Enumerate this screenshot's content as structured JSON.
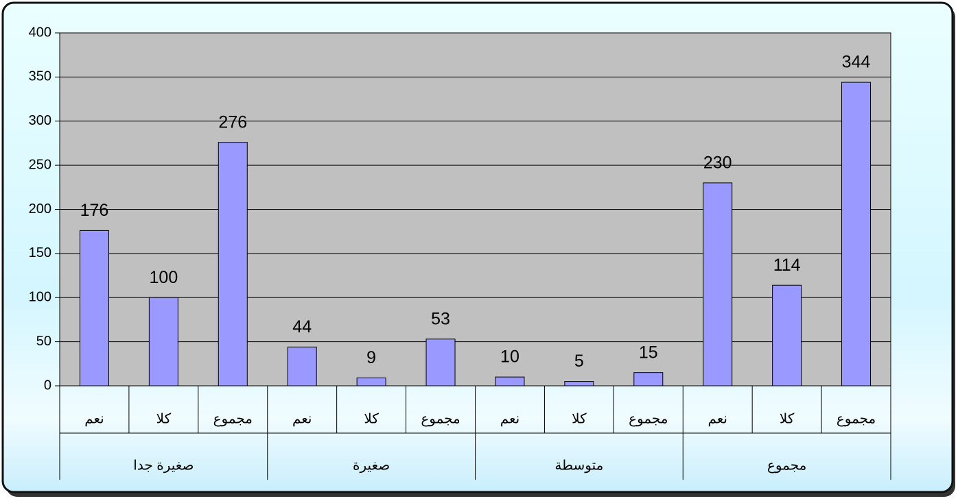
{
  "chart_data": {
    "type": "bar",
    "categories": [
      "نعم",
      "كلا",
      "مجموع",
      "نعم",
      "كلا",
      "مجموع",
      "نعم",
      "كلا",
      "مجموع",
      "نعم",
      "كلا",
      "مجموع"
    ],
    "groups": [
      "صغيرة جدا",
      "صغيرة",
      "متوسطة",
      "مجموع"
    ],
    "values": [
      176,
      100,
      276,
      44,
      9,
      53,
      10,
      5,
      15,
      230,
      114,
      344
    ],
    "color": "#9999ff",
    "ylim": [
      0,
      400
    ],
    "yticks": [
      0,
      50,
      100,
      150,
      200,
      250,
      300,
      350,
      400
    ],
    "grid": true
  }
}
